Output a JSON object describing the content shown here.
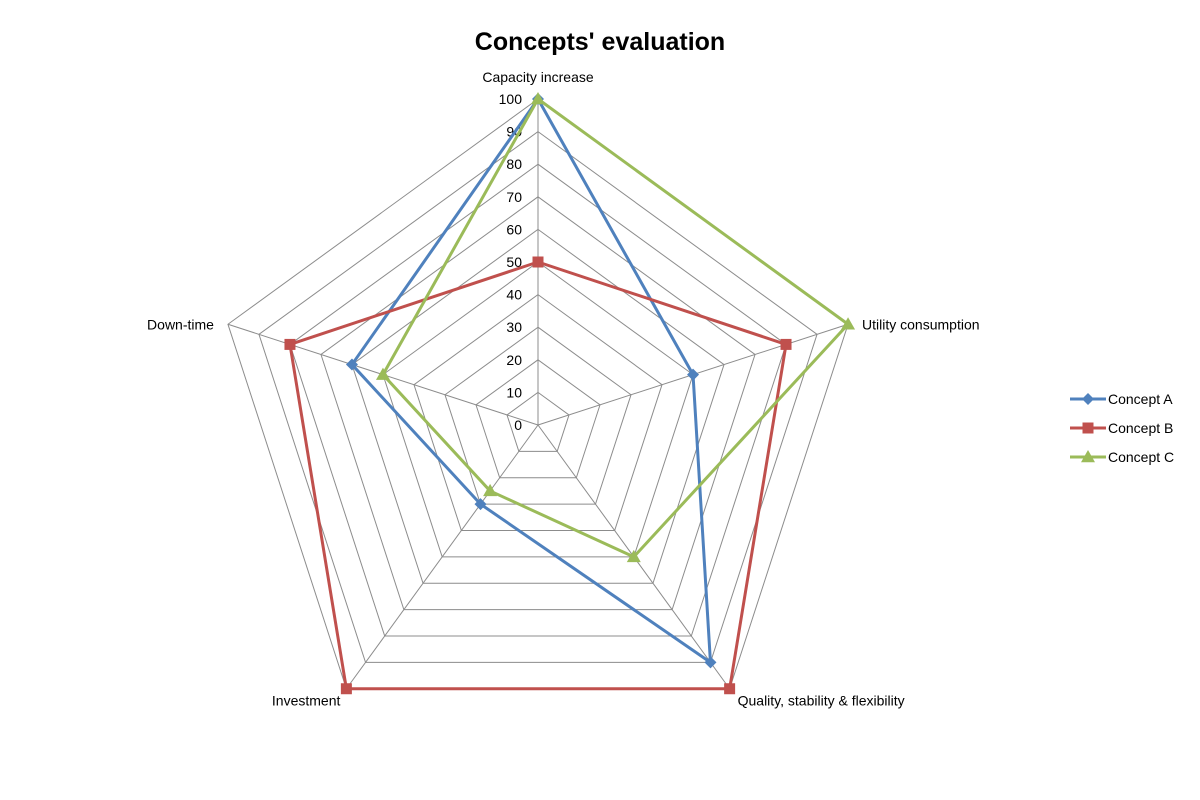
{
  "chart_data": {
    "type": "radar",
    "title": "Concepts' evaluation",
    "categories": [
      "Capacity increase",
      "Utility consumption",
      "Quality, stability & flexibility",
      "Investment",
      "Down-time"
    ],
    "rlim": [
      0,
      100
    ],
    "ticks": [
      0,
      10,
      20,
      30,
      40,
      50,
      60,
      70,
      80,
      90,
      100
    ],
    "grid": true,
    "legend": "right",
    "series": [
      {
        "name": "Concept A",
        "color": "#4F81BD",
        "marker": "diamond",
        "values": [
          100,
          50,
          90,
          30,
          60
        ]
      },
      {
        "name": "Concept B",
        "color": "#C0504D",
        "marker": "square",
        "values": [
          50,
          80,
          100,
          100,
          80
        ]
      },
      {
        "name": "Concept C",
        "color": "#9BBB59",
        "marker": "triangle",
        "values": [
          100,
          100,
          50,
          25,
          50
        ]
      }
    ]
  }
}
